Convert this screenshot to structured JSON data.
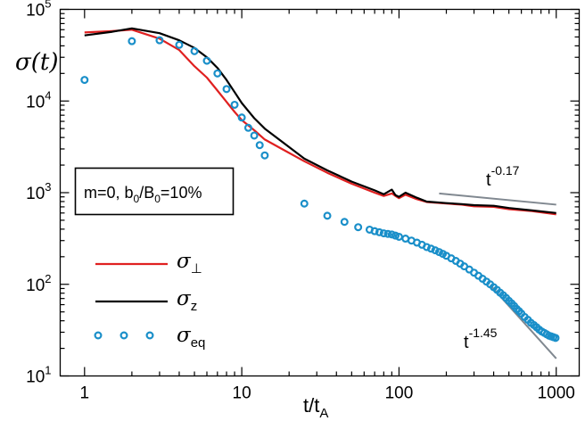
{
  "chart_data": {
    "type": "line",
    "x_scale": "log",
    "y_scale": "log",
    "xlim": [
      0.7,
      1400
    ],
    "ylim": [
      10,
      100000
    ],
    "grid": false,
    "xlabel": {
      "main": "t/t",
      "sub": "A"
    },
    "ylabel": {
      "main": "σ(t)"
    },
    "x_ticks": [
      {
        "value": 1,
        "label": "1"
      },
      {
        "value": 10,
        "label": "10"
      },
      {
        "value": 100,
        "label": "100"
      },
      {
        "value": 1000,
        "label": "1000"
      }
    ],
    "y_ticks": [
      {
        "value": 10,
        "base": "10",
        "exp": "1"
      },
      {
        "value": 100,
        "base": "10",
        "exp": "2"
      },
      {
        "value": 1000,
        "base": "10",
        "exp": "3"
      },
      {
        "value": 10000,
        "base": "10",
        "exp": "4"
      },
      {
        "value": 100000,
        "base": "10",
        "exp": "5"
      }
    ],
    "annotation_box": {
      "line1": "m=0, b",
      "s1": "0",
      "mid": "/B",
      "s2": "0",
      "end": "=10%"
    },
    "series": [
      {
        "name": "σ⊥",
        "label_main": "σ",
        "label_sub": "⊥",
        "style": "line",
        "color": "#e02020",
        "x": [
          1,
          1.5,
          2,
          3,
          4,
          5,
          6,
          7,
          8,
          9,
          10,
          12,
          14,
          18,
          25,
          35,
          50,
          70,
          80,
          90,
          95,
          100,
          110,
          130,
          150,
          200,
          250,
          300,
          400,
          500,
          700,
          1000
        ],
        "y": [
          56000,
          58000,
          60000,
          48000,
          36000,
          24000,
          18000,
          13000,
          9800,
          7600,
          6200,
          4800,
          3800,
          3000,
          2200,
          1650,
          1250,
          1000,
          920,
          980,
          920,
          870,
          950,
          850,
          790,
          760,
          740,
          710,
          700,
          660,
          630,
          580
        ]
      },
      {
        "name": "σz",
        "label_main": "σ",
        "label_sub": "z",
        "style": "line",
        "color": "#000000",
        "x": [
          1,
          1.5,
          2,
          3,
          4,
          5,
          6,
          7,
          8,
          9,
          10,
          12,
          14,
          18,
          25,
          35,
          50,
          70,
          80,
          90,
          95,
          100,
          110,
          130,
          150,
          200,
          250,
          300,
          400,
          500,
          700,
          1000
        ],
        "y": [
          52000,
          57000,
          62000,
          55000,
          46000,
          38000,
          30000,
          23000,
          17000,
          12500,
          9500,
          6500,
          5000,
          3600,
          2350,
          1750,
          1320,
          1060,
          960,
          1080,
          940,
          900,
          1000,
          880,
          800,
          770,
          750,
          730,
          720,
          680,
          640,
          600
        ]
      },
      {
        "name": "σeq",
        "label_main": "σ",
        "label_sub": "eq",
        "style": "markers",
        "color": "#1a8fc9",
        "x": [
          1,
          2,
          3,
          4,
          5,
          6,
          7,
          8,
          9,
          10,
          11,
          12,
          13,
          14,
          25,
          35,
          45,
          55,
          65,
          70,
          75,
          80,
          85,
          90,
          95,
          100,
          110,
          120,
          130,
          140,
          150,
          160,
          170,
          180,
          190,
          200,
          215,
          230,
          245,
          260,
          280,
          300,
          320,
          340,
          360,
          380,
          400,
          420,
          440,
          460,
          480,
          500,
          520,
          540,
          560,
          580,
          600,
          630,
          660,
          690,
          720,
          750,
          780,
          810,
          840,
          870,
          900,
          930,
          960,
          990
        ],
        "y": [
          17000,
          45000,
          46000,
          41000,
          35000,
          27500,
          20000,
          13500,
          9100,
          6600,
          5100,
          4200,
          3300,
          2550,
          760,
          560,
          480,
          420,
          395,
          380,
          370,
          360,
          355,
          350,
          340,
          330,
          315,
          300,
          285,
          270,
          255,
          245,
          235,
          225,
          215,
          205,
          192,
          180,
          168,
          157,
          145,
          134,
          124,
          115,
          107,
          100,
          93,
          87,
          81,
          76,
          71,
          66,
          62,
          58,
          54,
          51,
          48,
          44,
          41,
          38,
          36,
          34,
          32,
          30.5,
          29.5,
          28.5,
          27.5,
          27,
          26.5,
          26
        ]
      }
    ],
    "reference_lines": [
      {
        "x": [
          180,
          1000
        ],
        "y": [
          980,
          740
        ],
        "color": "#808890",
        "label": "t",
        "exp": "-0.17"
      },
      {
        "x": [
          380,
          1000
        ],
        "y": [
          98,
          15.5
        ],
        "color": "#808890",
        "label": "t",
        "exp": "-1.45"
      }
    ]
  }
}
